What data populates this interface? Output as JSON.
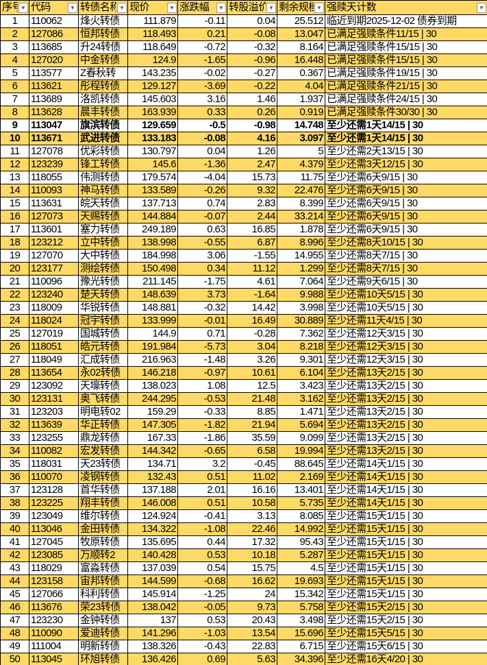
{
  "colors": {
    "header": "#FFD966",
    "stripe": "#FFD966"
  },
  "headers": [
    "序号",
    "代码",
    "转债名称",
    "现价",
    "涨跌幅",
    "转股溢价",
    "剩余规模",
    "强赎天计数"
  ],
  "rows": [
    [
      "1",
      "110062",
      "烽火转债",
      "111.879",
      "-0.11",
      "0.04",
      "25.512",
      "临近到期2025-12-02 债券到期"
    ],
    [
      "2",
      "127086",
      "恒邦转债",
      "118.493",
      "0.21",
      "-0.08",
      "13.047",
      "已满足强赎条件11/15 | 30"
    ],
    [
      "3",
      "113685",
      "升24转债",
      "118.649",
      "-0.72",
      "-0.32",
      "8.164",
      "已满足强赎条件15/15 | 30"
    ],
    [
      "4",
      "127020",
      "中金转债",
      "124.9",
      "-1.65",
      "-0.96",
      "16.448",
      "已满足强赎条件15/15 | 30"
    ],
    [
      "5",
      "113577",
      "Z春秋转",
      "143.235",
      "-0.02",
      "-0.27",
      "0.367",
      "已满足强赎条件19/15 | 30"
    ],
    [
      "6",
      "113621",
      "彤程转债",
      "129.127",
      "-3.69",
      "-0.22",
      "4.04",
      "已满足强赎条件21/15 | 30"
    ],
    [
      "7",
      "113689",
      "洛凯转债",
      "145.603",
      "3.16",
      "1.46",
      "1.937",
      "已满足强赎条件24/15 | 30"
    ],
    [
      "8",
      "113628",
      "晨丰转债",
      "163.939",
      "0.33",
      "0.26",
      "0.919",
      "已满足强赎条件30/30 | 30"
    ],
    [
      "9",
      "113047",
      "旗滨转债",
      "129.659",
      "-0.5",
      "-0.98",
      "14.748",
      "至少还需1天14/15 | 30"
    ],
    [
      "10",
      "113671",
      "武进转债",
      "133.183",
      "-0.08",
      "4.16",
      "3.097",
      "至少还需1天14/15 | 30"
    ],
    [
      "11",
      "127078",
      "优彩转债",
      "130.797",
      "0.04",
      "1.26",
      "5",
      "至少还需2天13/15 | 30"
    ],
    [
      "12",
      "123239",
      "锋工转债",
      "145.6",
      "-1.36",
      "2.47",
      "4.379",
      "至少还需3天12/15 | 30"
    ],
    [
      "13",
      "118055",
      "伟测转债",
      "179.574",
      "-4.04",
      "15.73",
      "11.75",
      "至少还需6天9/15 | 30"
    ],
    [
      "14",
      "110093",
      "神马转债",
      "133.589",
      "-0.26",
      "9.32",
      "22.476",
      "至少还需6天9/15 | 30"
    ],
    [
      "15",
      "113631",
      "皖天转债",
      "137.713",
      "0.74",
      "2.83",
      "8.399",
      "至少还需6天9/15 | 30"
    ],
    [
      "16",
      "127073",
      "天赐转债",
      "144.884",
      "-0.07",
      "2.44",
      "33.214",
      "至少还需6天9/15 | 30"
    ],
    [
      "17",
      "113601",
      "塞力转债",
      "249.189",
      "0.63",
      "16.85",
      "1.878",
      "至少还需6天9/15 | 30"
    ],
    [
      "18",
      "123212",
      "立中转债",
      "138.998",
      "-0.55",
      "6.87",
      "8.996",
      "至少还需8天10/15 | 30"
    ],
    [
      "19",
      "127070",
      "大中转债",
      "184.998",
      "3.06",
      "-1.55",
      "14.955",
      "至少还需8天7/15 | 30"
    ],
    [
      "20",
      "123177",
      "测绘转债",
      "150.498",
      "0.34",
      "11.12",
      "1.299",
      "至少还需8天7/15 | 30"
    ],
    [
      "21",
      "110096",
      "豫光转债",
      "211.145",
      "-1.75",
      "4.61",
      "7.064",
      "至少还需9天6/15 | 30"
    ],
    [
      "22",
      "123240",
      "楚天转债",
      "148.639",
      "3.73",
      "-1.64",
      "9.988",
      "至少还需10天5/15 | 30"
    ],
    [
      "23",
      "118009",
      "华锐转债",
      "148.881",
      "-0.32",
      "14.42",
      "3.998",
      "至少还需10天5/15 | 30"
    ],
    [
      "24",
      "118024",
      "冠宇转债",
      "133.999",
      "-0.01",
      "16.49",
      "30.889",
      "至少还需11天4/15 | 30"
    ],
    [
      "25",
      "127019",
      "国城转债",
      "144.9",
      "0.71",
      "-0.28",
      "7.362",
      "至少还需12天3/15 | 30"
    ],
    [
      "26",
      "118051",
      "皓元转债",
      "191.984",
      "-5.73",
      "3.04",
      "8.218",
      "至少还需12天3/15 | 30"
    ],
    [
      "27",
      "118049",
      "汇成转债",
      "216.963",
      "-1.48",
      "3.26",
      "9.301",
      "至少还需12天3/15 | 30"
    ],
    [
      "28",
      "113654",
      "永02转债",
      "146.218",
      "-0.97",
      "10.61",
      "6.104",
      "至少还需13天2/15 | 30"
    ],
    [
      "29",
      "123092",
      "天壕转债",
      "138.023",
      "1.08",
      "12.5",
      "3.423",
      "至少还需13天2/15 | 30"
    ],
    [
      "30",
      "123131",
      "奥飞转债",
      "244.295",
      "-0.53",
      "21.48",
      "3.162",
      "至少还需13天2/15 | 30"
    ],
    [
      "31",
      "123203",
      "明电转02",
      "159.29",
      "-0.33",
      "8.85",
      "1.471",
      "至少还需13天2/15 | 30"
    ],
    [
      "32",
      "113639",
      "华正转债",
      "147.305",
      "-1.82",
      "21.94",
      "5.694",
      "至少还需13天2/15 | 30"
    ],
    [
      "33",
      "123255",
      "鼎龙转债",
      "167.33",
      "-1.86",
      "35.59",
      "9.099",
      "至少还需13天2/15 | 30"
    ],
    [
      "34",
      "110082",
      "宏发转债",
      "144.342",
      "-0.65",
      "6.58",
      "19.994",
      "至少还需13天2/15 | 30"
    ],
    [
      "35",
      "118031",
      "天23转债",
      "134.71",
      "3.2",
      "-0.45",
      "88.645",
      "至少还需14天1/15 | 30"
    ],
    [
      "36",
      "110070",
      "凌钢转债",
      "132.43",
      "0.51",
      "11.02",
      "2.169",
      "至少还需14天1/15 | 30"
    ],
    [
      "37",
      "123128",
      "首华转债",
      "137.188",
      "2.01",
      "16.16",
      "13.401",
      "至少还需14天1/15 | 30"
    ],
    [
      "38",
      "123225",
      "翔丰转债",
      "146.008",
      "0.51",
      "10.58",
      "5.735",
      "至少还需14天1/15 | 30"
    ],
    [
      "39",
      "123049",
      "维尔转债",
      "124.924",
      "-0.41",
      "3.13",
      "8.085",
      "至少还需15天1/15 | 30"
    ],
    [
      "40",
      "113046",
      "金田转债",
      "134.322",
      "-1.08",
      "22.46",
      "14.992",
      "至少还需15天1/15 | 30"
    ],
    [
      "41",
      "127045",
      "牧原转债",
      "135.695",
      "0.44",
      "17.32",
      "95.43",
      "至少还需15天1/15 | 30"
    ],
    [
      "42",
      "123085",
      "万顺转2",
      "140.428",
      "0.53",
      "10.18",
      "5.287",
      "至少还需15天1/15 | 30"
    ],
    [
      "43",
      "118029",
      "富淼转债",
      "137.039",
      "0.54",
      "15.75",
      "4.5",
      "至少还需15天1/15 | 30"
    ],
    [
      "44",
      "123158",
      "宙邦转债",
      "144.599",
      "-0.68",
      "16.62",
      "19.693",
      "至少还需15天1/15 | 30"
    ],
    [
      "45",
      "127066",
      "科利转债",
      "145.914",
      "-1.25",
      "24",
      "15.342",
      "至少还需15天1/15 | 30"
    ],
    [
      "46",
      "113676",
      "荣23转债",
      "138.042",
      "-0.05",
      "9.73",
      "5.758",
      "至少还需15天2/15 | 30"
    ],
    [
      "47",
      "123230",
      "金钟转债",
      "137",
      "0.53",
      "20.43",
      "3.498",
      "至少还需15天2/15 | 30"
    ],
    [
      "48",
      "110090",
      "爱迪转债",
      "141.296",
      "-1.03",
      "13.54",
      "15.696",
      "至少还需15天5/15 | 30"
    ],
    [
      "49",
      "111004",
      "明新转债",
      "138.326",
      "-0.43",
      "22.83",
      "6.715",
      "至少还需15天6/15 | 30"
    ],
    [
      "50",
      "113045",
      "环旭转债",
      "136.426",
      "0.69",
      "5.63",
      "34.396",
      "至少还需16天4/20 | 30"
    ]
  ],
  "bold_rows": [
    "9",
    "10"
  ]
}
